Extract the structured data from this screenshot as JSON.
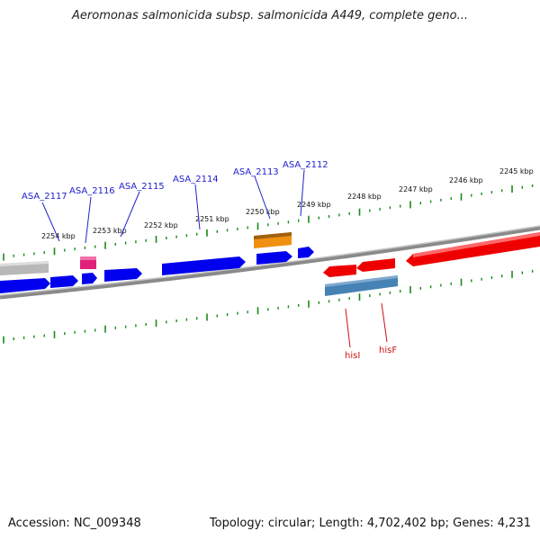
{
  "title": "Aeromonas salmonicida subsp. salmonicida A449, complete geno...",
  "accession": "Accession: NC_009348",
  "summary": "Topology: circular; Length: 4,702,402 bp; Genes: 4,231",
  "scale_labels": [
    "2254 kbp",
    "2253 kbp",
    "2252 kbp",
    "2251 kbp",
    "2250 kbp",
    "2249 kbp",
    "2248 kbp",
    "2247 kbp",
    "2246 kbp",
    "2245 kbp"
  ],
  "upper_gene_labels": [
    "ASA_2117",
    "ASA_2116",
    "ASA_2115",
    "ASA_2114",
    "ASA_2113",
    "ASA_2112"
  ],
  "lower_gene_labels": [
    "hisI",
    "hisF"
  ],
  "colors": {
    "background": "#ffffff",
    "backbone": "#808080",
    "scale_ticks": "#1a8a1a",
    "forward_gene": "#0000ee",
    "reverse_gene": "#ee0000",
    "pink_feature": "#e0207a",
    "orange_feature": "#f09010",
    "steelblue_feature": "#4682b4",
    "grey_feature": "#b8b8b8",
    "upper_label_text": "#2020cc",
    "lower_label_text": "#cc1111"
  }
}
